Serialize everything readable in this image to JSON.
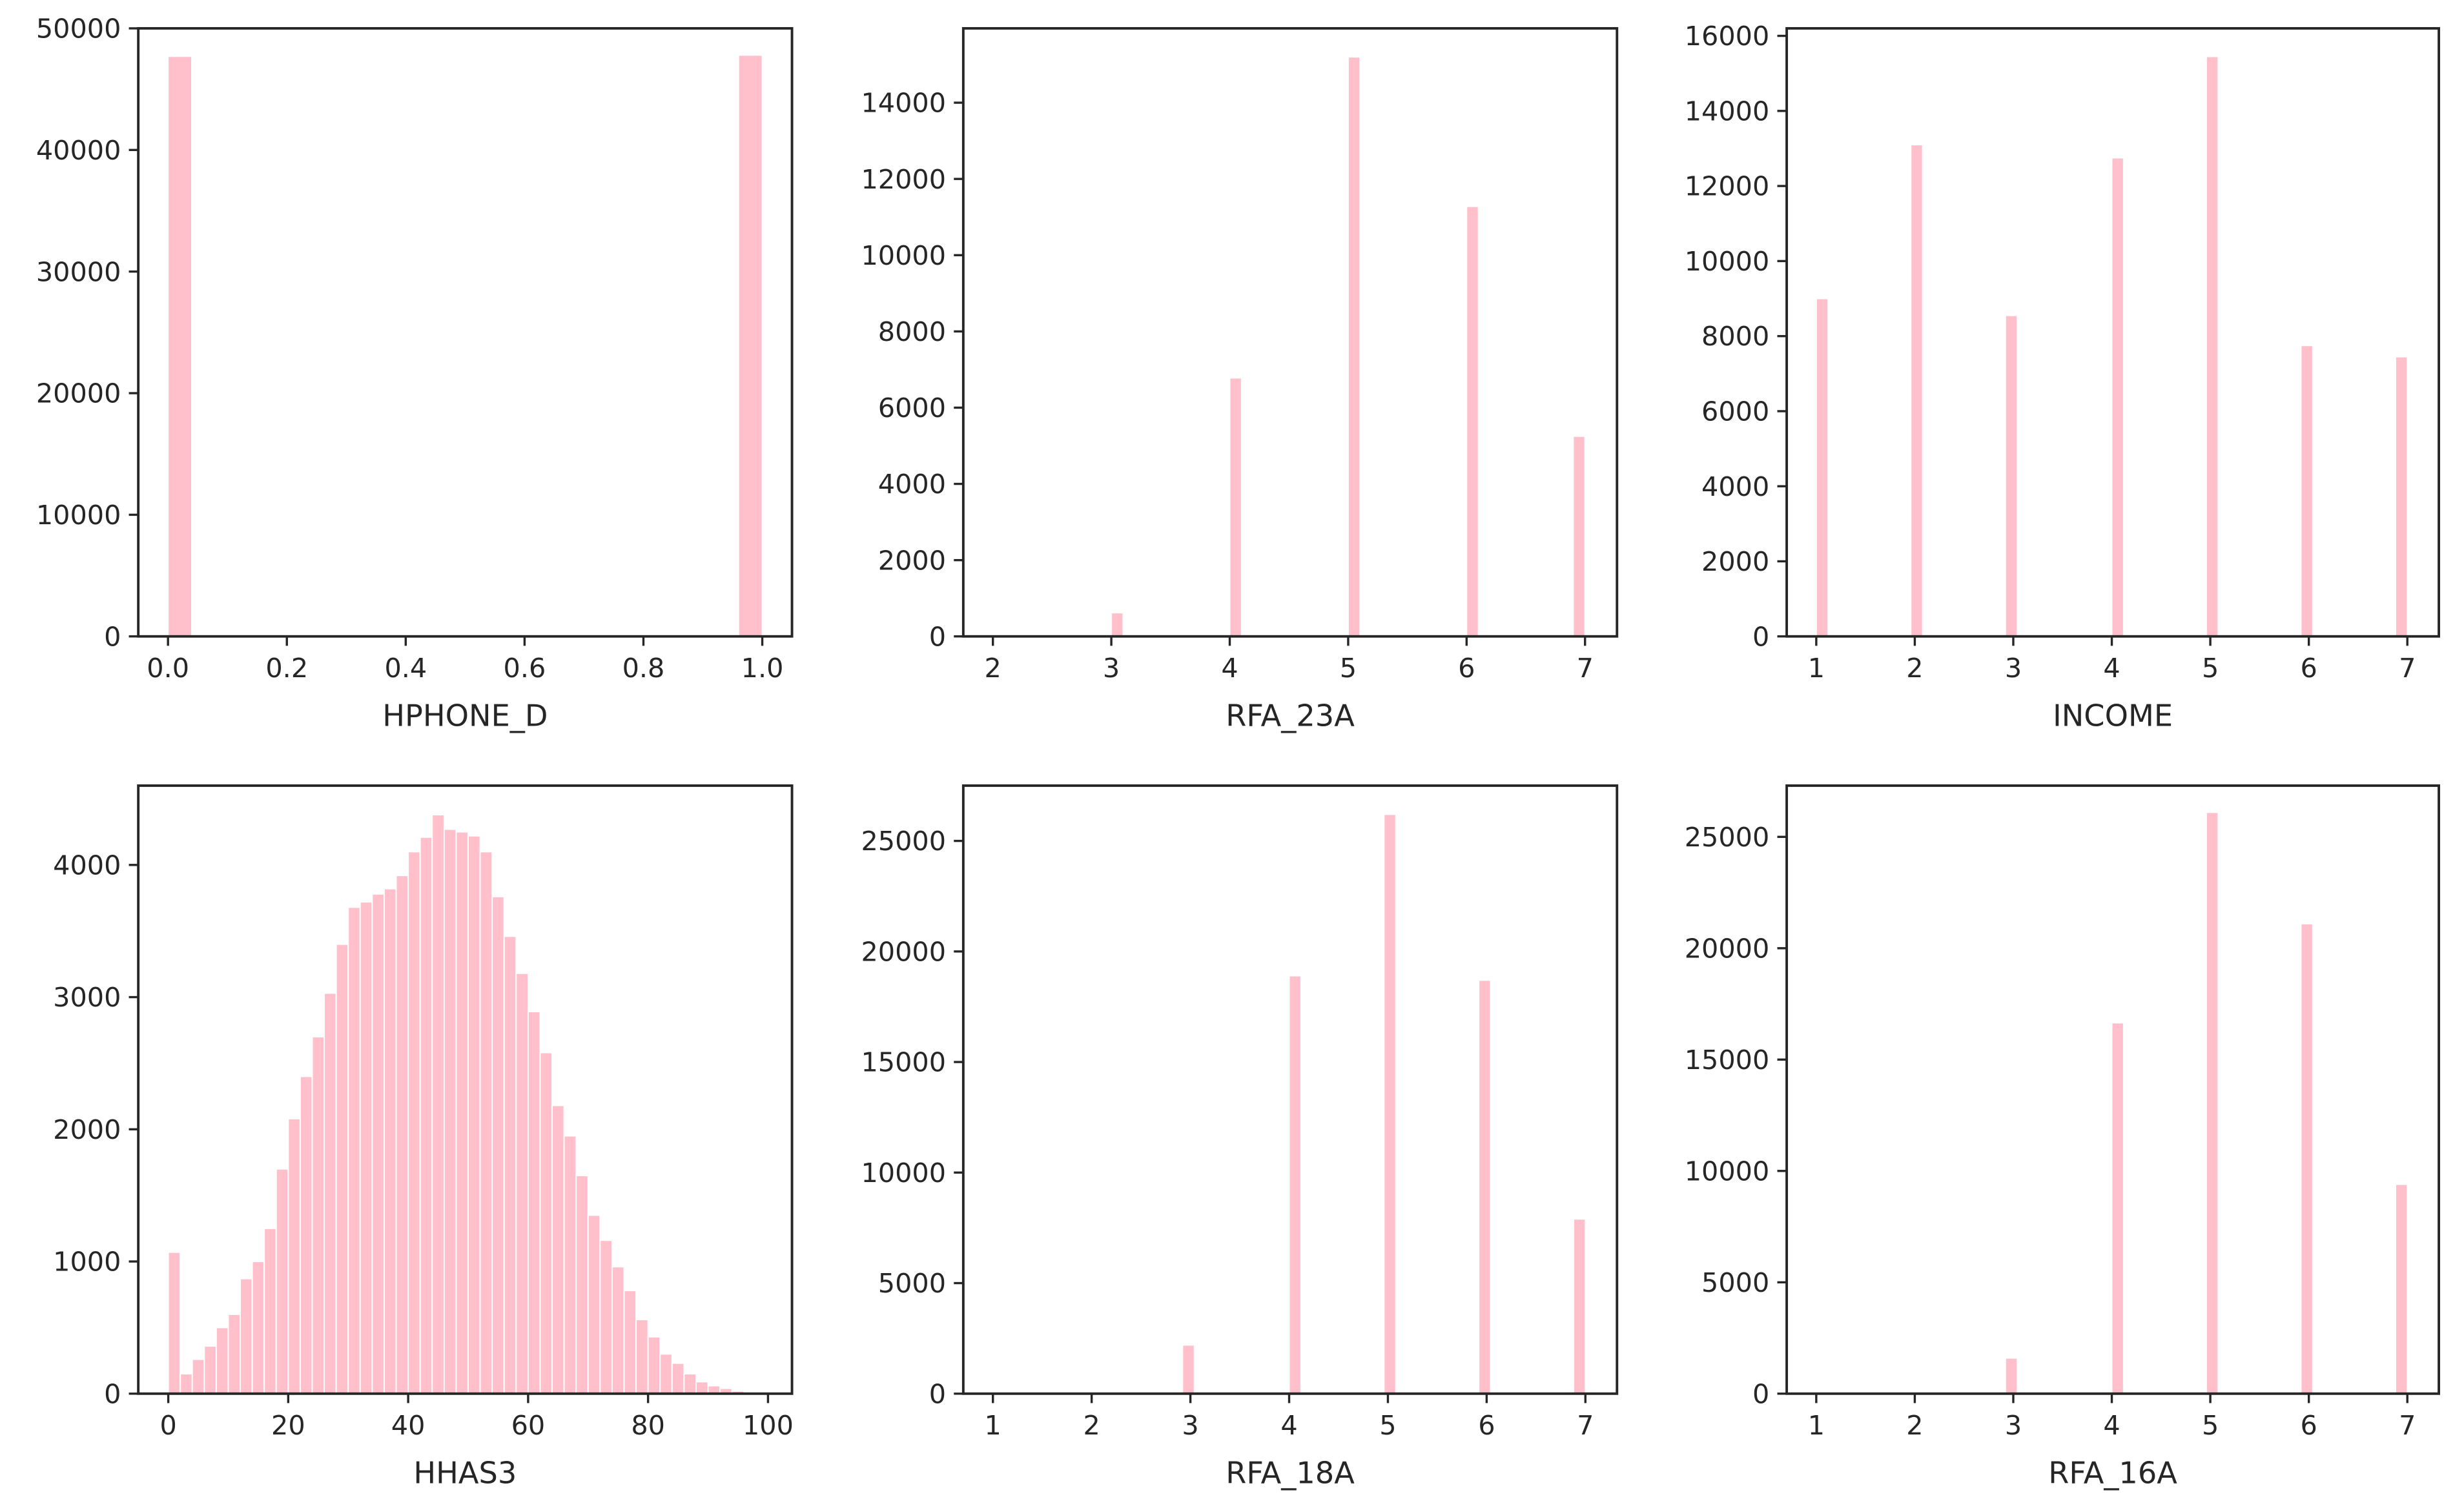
{
  "chart_data": [
    {
      "type": "histogram",
      "xlabel": "HPHONE_D",
      "color": "#ffc0cb",
      "bins": [
        0,
        0.04,
        0.96,
        1
      ],
      "values": [
        47700,
        0,
        47800
      ],
      "xlim": [
        -0.05,
        1.05
      ],
      "ylim": [
        0,
        50000
      ],
      "xticks": [
        {
          "value": 0,
          "label": "0.0"
        },
        0.2,
        0.4,
        0.6,
        0.8,
        {
          "value": 1,
          "label": "1.0"
        }
      ],
      "yticks": [
        0,
        10000,
        20000,
        30000,
        40000,
        50000
      ]
    },
    {
      "type": "histogram",
      "xlabel": "RFA_23A",
      "color": "#ffc0cb",
      "bins": [
        2,
        3,
        3.1,
        4,
        4.1,
        5,
        5.1,
        6,
        6.1,
        6.9,
        7
      ],
      "values": [
        0,
        620,
        0,
        6780,
        0,
        15200,
        0,
        11280,
        0,
        5250
      ],
      "xlim": [
        1.75,
        7.27
      ],
      "ylim": [
        0,
        15950
      ],
      "xticks": [
        2,
        3,
        4,
        5,
        6,
        7
      ],
      "yticks": [
        0,
        2000,
        4000,
        6000,
        8000,
        10000,
        12000,
        14000
      ]
    },
    {
      "type": "histogram",
      "xlabel": "INCOME",
      "color": "#ffc0cb",
      "bins": [
        1,
        1.12,
        1.96,
        2.08,
        2.92,
        3.04,
        4,
        4.12,
        4.96,
        5.08,
        5.92,
        6.04,
        6.88,
        7
      ],
      "values": [
        9000,
        0,
        13100,
        0,
        8550,
        0,
        12750,
        0,
        15450,
        0,
        7750,
        0,
        7450
      ],
      "xlim": [
        0.7,
        7.32
      ],
      "ylim": [
        0,
        16200
      ],
      "xticks": [
        1,
        2,
        3,
        4,
        5,
        6,
        7
      ],
      "yticks": [
        0,
        2000,
        4000,
        6000,
        8000,
        10000,
        12000,
        14000,
        16000
      ]
    },
    {
      "type": "histogram",
      "xlabel": "HHAS3",
      "color": "#ffc0cb",
      "bins": [
        0,
        2,
        4,
        6,
        8,
        10,
        12,
        14,
        16,
        18,
        20,
        22,
        24,
        26,
        28,
        30,
        32,
        34,
        36,
        38,
        40,
        42,
        44,
        46,
        48,
        50,
        52,
        54,
        56,
        58,
        60,
        62,
        64,
        66,
        68,
        70,
        72,
        74,
        76,
        78,
        80,
        82,
        84,
        86,
        88,
        90,
        92,
        94,
        96,
        98,
        100
      ],
      "values": [
        1070,
        150,
        260,
        360,
        500,
        600,
        870,
        1000,
        1250,
        1700,
        2080,
        2400,
        2700,
        3030,
        3400,
        3680,
        3720,
        3780,
        3820,
        3920,
        4100,
        4210,
        4380,
        4270,
        4250,
        4220,
        4100,
        3760,
        3460,
        3180,
        2890,
        2580,
        2180,
        1950,
        1650,
        1350,
        1160,
        960,
        780,
        560,
        430,
        300,
        230,
        150,
        90,
        60,
        40,
        20,
        10,
        5
      ],
      "xlim": [
        -5,
        104
      ],
      "ylim": [
        0,
        4600
      ],
      "xticks": [
        0,
        20,
        40,
        60,
        80,
        100
      ],
      "yticks": [
        0,
        1000,
        2000,
        3000,
        4000
      ]
    },
    {
      "type": "histogram",
      "xlabel": "RFA_18A",
      "color": "#ffc0cb",
      "bins": [
        1,
        2.92,
        3.04,
        4,
        4.12,
        4.96,
        5.08,
        5.92,
        6.04,
        6.88,
        7
      ],
      "values": [
        0,
        2200,
        0,
        18900,
        0,
        26200,
        0,
        18700,
        0,
        7900
      ],
      "xlim": [
        0.7,
        7.32
      ],
      "ylim": [
        0,
        27500
      ],
      "xticks": [
        1,
        2,
        3,
        4,
        5,
        6,
        7
      ],
      "yticks": [
        0,
        5000,
        10000,
        15000,
        20000,
        25000
      ]
    },
    {
      "type": "histogram",
      "xlabel": "RFA_16A",
      "color": "#ffc0cb",
      "bins": [
        1,
        2.92,
        3.04,
        4,
        4.12,
        4.96,
        5.08,
        5.92,
        6.04,
        6.88,
        7
      ],
      "values": [
        0,
        1600,
        0,
        16650,
        0,
        26100,
        0,
        21100,
        0,
        9400
      ],
      "xlim": [
        0.7,
        7.32
      ],
      "ylim": [
        0,
        27300
      ],
      "xticks": [
        1,
        2,
        3,
        4,
        5,
        6,
        7
      ],
      "yticks": [
        0,
        5000,
        10000,
        15000,
        20000,
        25000
      ]
    }
  ]
}
